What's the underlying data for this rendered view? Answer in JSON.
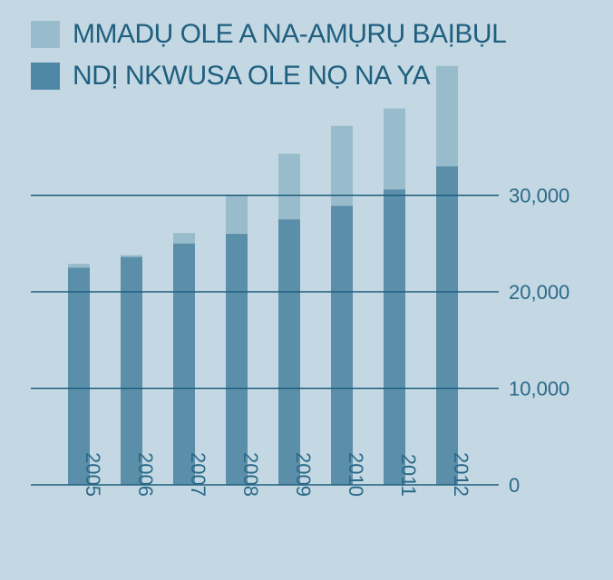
{
  "colors": {
    "background": "#c4d8e3",
    "series_light": "#98bccc",
    "series_dark": "#5b8ea9",
    "legend_dark_swatch": "#4f88a7",
    "gridline": "#1f5f7f",
    "text": "#1f5f7f"
  },
  "legend": {
    "position": "top-left",
    "items": [
      {
        "label": "MMADỤ OLE A NA-AMỤRỤ BAỊBỤL",
        "color": "#98bccc"
      },
      {
        "label": "NDỊ NKWUSA OLE NỌ NA YA",
        "color": "#4f88a7"
      }
    ]
  },
  "chart_data": {
    "type": "bar",
    "stacked": false,
    "categories": [
      "2005",
      "2006",
      "2007",
      "2008",
      "2009",
      "2010",
      "2011",
      "2012"
    ],
    "series": [
      {
        "name": "MMADỤ OLE A NA-AMỤRỤ BAỊBỤL",
        "values": [
          22900,
          23800,
          26100,
          30000,
          34300,
          37200,
          39000,
          43400
        ]
      },
      {
        "name": "NDỊ NKWUSA OLE NỌ NA YA",
        "values": [
          22500,
          23600,
          25000,
          26000,
          27500,
          28900,
          30600,
          33000
        ]
      }
    ],
    "ylim": [
      0,
      45000
    ],
    "yticks": [
      {
        "value": 0,
        "label": "0"
      },
      {
        "value": 10000,
        "label": "10,000"
      },
      {
        "value": 20000,
        "label": "20,000"
      },
      {
        "value": 30000,
        "label": "30,000"
      }
    ],
    "y_axis_side": "right",
    "x_tick_rotation": 90,
    "grid": true,
    "title": "",
    "xlabel": "",
    "ylabel": ""
  }
}
